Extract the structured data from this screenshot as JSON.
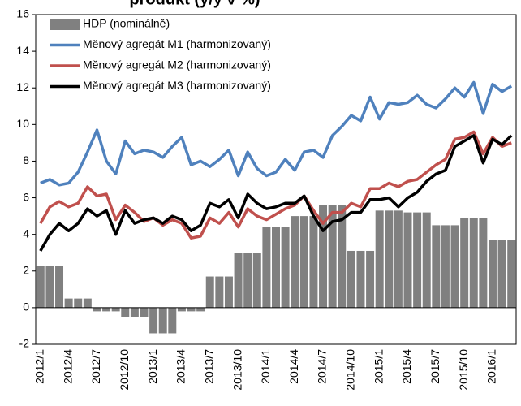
{
  "chart_data": {
    "type": "bar",
    "title": "produkt (y/y v %)",
    "categories": [
      "2012/1",
      null,
      null,
      "2012/4",
      null,
      null,
      "2012/7",
      null,
      null,
      "2012/10",
      null,
      null,
      "2013/1",
      null,
      null,
      "2013/4",
      null,
      null,
      "2013/7",
      null,
      null,
      "2013/10",
      null,
      null,
      "2014/1",
      null,
      null,
      "2014/4",
      null,
      null,
      "2014/7",
      null,
      null,
      "2014/10",
      null,
      null,
      "2015/1",
      null,
      null,
      "2015/4",
      null,
      null,
      "2015/7",
      null,
      null,
      "2015/10",
      null,
      null,
      "2016/1",
      null,
      null
    ],
    "ylim": [
      -2,
      16
    ],
    "yticks": [
      -2,
      0,
      2,
      4,
      6,
      8,
      10,
      12,
      14,
      16
    ],
    "legend": "upper left",
    "series": [
      {
        "name": "HDP (nominálně)",
        "type": "bar",
        "color": "#808080",
        "values": [
          2.3,
          2.3,
          2.3,
          0.5,
          0.5,
          0.5,
          -0.2,
          -0.2,
          -0.2,
          -0.5,
          -0.5,
          -0.5,
          -1.4,
          -1.4,
          -1.4,
          -0.2,
          -0.2,
          -0.2,
          1.7,
          1.7,
          1.7,
          3.0,
          3.0,
          3.0,
          4.4,
          4.4,
          4.4,
          5.0,
          5.0,
          5.0,
          5.6,
          5.6,
          5.6,
          3.1,
          3.1,
          3.1,
          5.3,
          5.3,
          5.3,
          5.2,
          5.2,
          5.2,
          4.5,
          4.5,
          4.5,
          4.9,
          4.9,
          4.9,
          3.7,
          3.7,
          3.7
        ]
      },
      {
        "name": "Měnový agregát M1 (harmonizovaný)",
        "type": "line",
        "color": "#4f81bd",
        "values": [
          6.8,
          7.0,
          6.7,
          6.8,
          7.4,
          8.5,
          9.7,
          8.0,
          7.3,
          9.1,
          8.4,
          8.6,
          8.5,
          8.2,
          8.8,
          9.3,
          7.8,
          8.0,
          7.7,
          8.1,
          8.6,
          7.2,
          8.5,
          7.6,
          7.2,
          7.4,
          8.1,
          7.5,
          8.5,
          8.6,
          8.2,
          9.4,
          9.9,
          10.5,
          10.2,
          11.5,
          10.3,
          11.2,
          11.1,
          11.2,
          11.6,
          11.1,
          10.9,
          11.4,
          12.0,
          11.5,
          12.3,
          10.6,
          12.2,
          11.8,
          12.1
        ]
      },
      {
        "name": "Měnový agregát M2 (harmonizovaný)",
        "type": "line",
        "color": "#c0504d",
        "values": [
          4.6,
          5.5,
          5.8,
          5.5,
          5.7,
          6.6,
          6.1,
          6.2,
          4.8,
          5.6,
          5.2,
          4.7,
          4.9,
          4.5,
          4.8,
          4.6,
          3.8,
          3.9,
          4.9,
          4.6,
          5.2,
          4.4,
          5.4,
          5.0,
          4.8,
          5.1,
          5.4,
          5.6,
          6.1,
          5.3,
          4.6,
          5.2,
          5.2,
          5.7,
          5.5,
          6.5,
          6.5,
          6.8,
          6.6,
          6.9,
          7.0,
          7.4,
          7.8,
          8.1,
          9.2,
          9.3,
          9.6,
          8.4,
          9.3,
          8.8,
          9.0
        ]
      },
      {
        "name": "Měnový agregát M3 (harmonizovaný)",
        "type": "line",
        "color": "#000000",
        "values": [
          3.1,
          4.0,
          4.6,
          4.2,
          4.6,
          5.4,
          5.0,
          5.3,
          4.0,
          5.3,
          4.6,
          4.8,
          4.9,
          4.6,
          5.0,
          4.8,
          4.2,
          4.5,
          5.7,
          5.5,
          5.9,
          4.9,
          6.2,
          5.7,
          5.4,
          5.5,
          5.7,
          5.7,
          6.1,
          5.0,
          4.2,
          4.7,
          4.8,
          5.2,
          5.2,
          5.9,
          5.9,
          6.0,
          5.5,
          6.0,
          6.3,
          6.9,
          7.3,
          7.5,
          8.8,
          9.1,
          9.4,
          7.9,
          9.2,
          8.9,
          9.4
        ]
      }
    ]
  }
}
